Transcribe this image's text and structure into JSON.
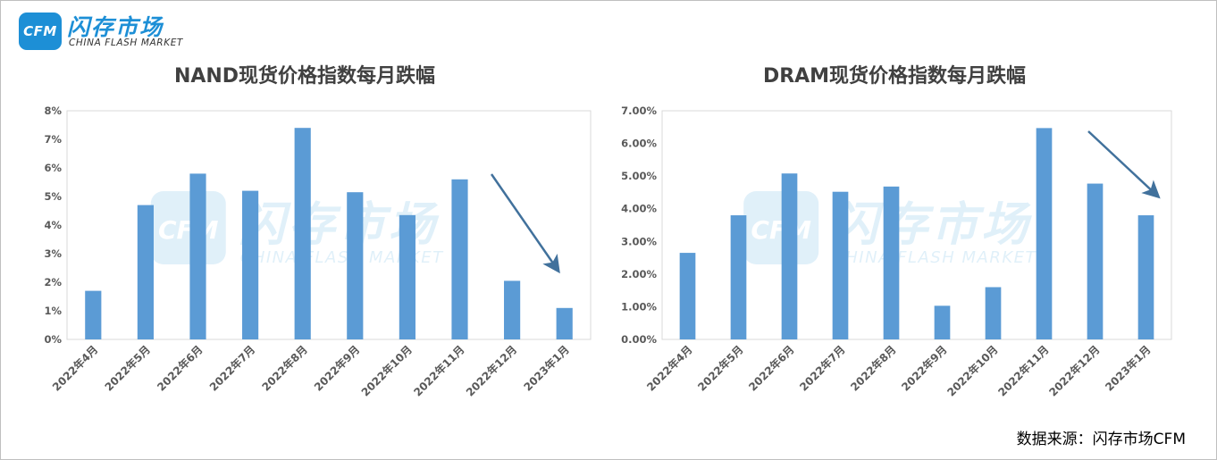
{
  "logo": {
    "mark": "CFM",
    "name_cn": "闪存市场",
    "name_en": "CHINA FLASH MARKET"
  },
  "source_note": "数据来源：闪存市场CFM",
  "chart_data": [
    {
      "type": "bar",
      "title": "NAND现货价格指数每月跌幅",
      "categories": [
        "2022年4月",
        "2022年5月",
        "2022年6月",
        "2022年7月",
        "2022年8月",
        "2022年9月",
        "2022年10月",
        "2022年11月",
        "2022年12月",
        "2023年1月"
      ],
      "values": [
        1.7,
        4.7,
        5.8,
        5.2,
        7.4,
        5.15,
        4.35,
        5.6,
        2.05,
        1.1
      ],
      "ylim": [
        0,
        8
      ],
      "yticks": [
        "0%",
        "1%",
        "2%",
        "3%",
        "4%",
        "5%",
        "6%",
        "7%",
        "8%"
      ],
      "grid": false,
      "bar_color": "#5b9bd5",
      "annotation": "arrow-down-right"
    },
    {
      "type": "bar",
      "title": "DRAM现货价格指数每月跌幅",
      "categories": [
        "2022年4月",
        "2022年5月",
        "2022年6月",
        "2022年7月",
        "2022年8月",
        "2022年9月",
        "2022年10月",
        "2022年11月",
        "2022年12月",
        "2023年1月"
      ],
      "values": [
        2.65,
        3.8,
        5.08,
        4.52,
        4.68,
        1.03,
        1.6,
        6.47,
        4.77,
        3.8
      ],
      "ylim": [
        0,
        7
      ],
      "yticks": [
        "0.00%",
        "1.00%",
        "2.00%",
        "3.00%",
        "4.00%",
        "5.00%",
        "6.00%",
        "7.00%"
      ],
      "grid": false,
      "bar_color": "#5b9bd5",
      "annotation": "arrow-down-right"
    }
  ],
  "colors": {
    "bar": "#5b9bd5",
    "arrow": "#41719c",
    "brand": "#1d8fd6",
    "axis": "#d9d9d9"
  }
}
